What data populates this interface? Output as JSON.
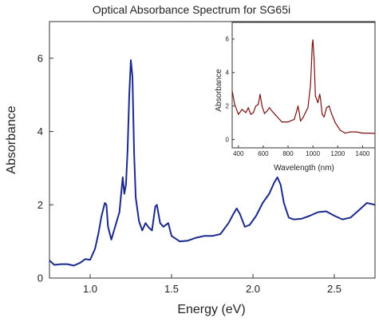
{
  "chart_data": [
    {
      "type": "line",
      "title": "Optical Absorbance Spectrum for SG65i",
      "xlabel": "Energy (eV)",
      "ylabel": "Absorbance",
      "xlim": [
        0.75,
        2.75
      ],
      "ylim": [
        0,
        7
      ],
      "xticks": [
        1.0,
        1.5,
        2.0,
        2.5
      ],
      "xtick_labels": [
        "1.0",
        "1.5",
        "2.0",
        "2.5"
      ],
      "yticks": [
        0,
        2,
        4,
        6
      ],
      "ytick_labels": [
        "0",
        "2",
        "4",
        "6"
      ],
      "grid": false,
      "line_color": "#1b2a8c",
      "x": [
        0.75,
        0.78,
        0.82,
        0.86,
        0.9,
        0.94,
        0.97,
        1.0,
        1.03,
        1.05,
        1.07,
        1.09,
        1.1,
        1.11,
        1.13,
        1.15,
        1.18,
        1.2,
        1.21,
        1.22,
        1.23,
        1.24,
        1.25,
        1.26,
        1.27,
        1.28,
        1.3,
        1.32,
        1.34,
        1.36,
        1.38,
        1.4,
        1.41,
        1.43,
        1.45,
        1.48,
        1.5,
        1.55,
        1.6,
        1.65,
        1.7,
        1.75,
        1.8,
        1.85,
        1.88,
        1.9,
        1.92,
        1.95,
        1.98,
        2.02,
        2.06,
        2.1,
        2.13,
        2.15,
        2.17,
        2.19,
        2.22,
        2.25,
        2.3,
        2.35,
        2.4,
        2.45,
        2.5,
        2.55,
        2.6,
        2.65,
        2.7,
        2.75
      ],
      "y": [
        0.48,
        0.36,
        0.38,
        0.38,
        0.34,
        0.42,
        0.52,
        0.5,
        0.8,
        1.2,
        1.7,
        2.05,
        2.0,
        1.4,
        1.05,
        1.35,
        1.8,
        2.75,
        2.3,
        2.55,
        3.5,
        5.0,
        5.95,
        5.5,
        3.4,
        2.2,
        1.55,
        1.3,
        1.5,
        1.38,
        1.3,
        1.95,
        2.0,
        1.5,
        1.4,
        1.5,
        1.15,
        1.0,
        1.02,
        1.1,
        1.15,
        1.15,
        1.2,
        1.5,
        1.75,
        1.9,
        1.75,
        1.4,
        1.45,
        1.7,
        2.05,
        2.3,
        2.6,
        2.75,
        2.55,
        2.05,
        1.65,
        1.6,
        1.62,
        1.7,
        1.8,
        1.82,
        1.7,
        1.6,
        1.65,
        1.85,
        2.05,
        2.0
      ]
    },
    {
      "type": "line",
      "title": "",
      "xlabel": "Wavelength (nm)",
      "ylabel": "Absorbance",
      "xlim": [
        350,
        1500
      ],
      "ylim": [
        -0.5,
        7
      ],
      "xticks": [
        400,
        600,
        800,
        1000,
        1200,
        1400
      ],
      "xtick_labels": [
        "400",
        "600",
        "800",
        "1000",
        "1200",
        "1400"
      ],
      "yticks": [
        0,
        2,
        4,
        6
      ],
      "ytick_labels": [
        "0",
        "2",
        "4",
        "6"
      ],
      "grid": false,
      "line_color": "#7a1010",
      "x": [
        350,
        370,
        400,
        430,
        460,
        480,
        500,
        520,
        540,
        560,
        575,
        590,
        610,
        630,
        650,
        670,
        700,
        750,
        800,
        850,
        870,
        880,
        890,
        900,
        920,
        940,
        960,
        980,
        990,
        995,
        1000,
        1010,
        1020,
        1040,
        1055,
        1060,
        1075,
        1090,
        1110,
        1130,
        1150,
        1180,
        1220,
        1260,
        1300,
        1350,
        1400,
        1450,
        1500
      ],
      "y": [
        2.9,
        2.1,
        1.5,
        1.8,
        1.6,
        1.9,
        1.5,
        1.6,
        2.0,
        2.1,
        2.7,
        2.0,
        1.55,
        1.7,
        1.9,
        1.7,
        1.45,
        1.05,
        1.05,
        1.2,
        1.7,
        2.0,
        1.6,
        1.1,
        1.3,
        1.6,
        1.9,
        3.2,
        4.8,
        5.7,
        5.95,
        4.8,
        2.6,
        2.2,
        2.7,
        2.5,
        1.5,
        1.35,
        1.9,
        2.0,
        1.55,
        1.0,
        0.55,
        0.38,
        0.45,
        0.45,
        0.38,
        0.38,
        0.36
      ]
    }
  ]
}
